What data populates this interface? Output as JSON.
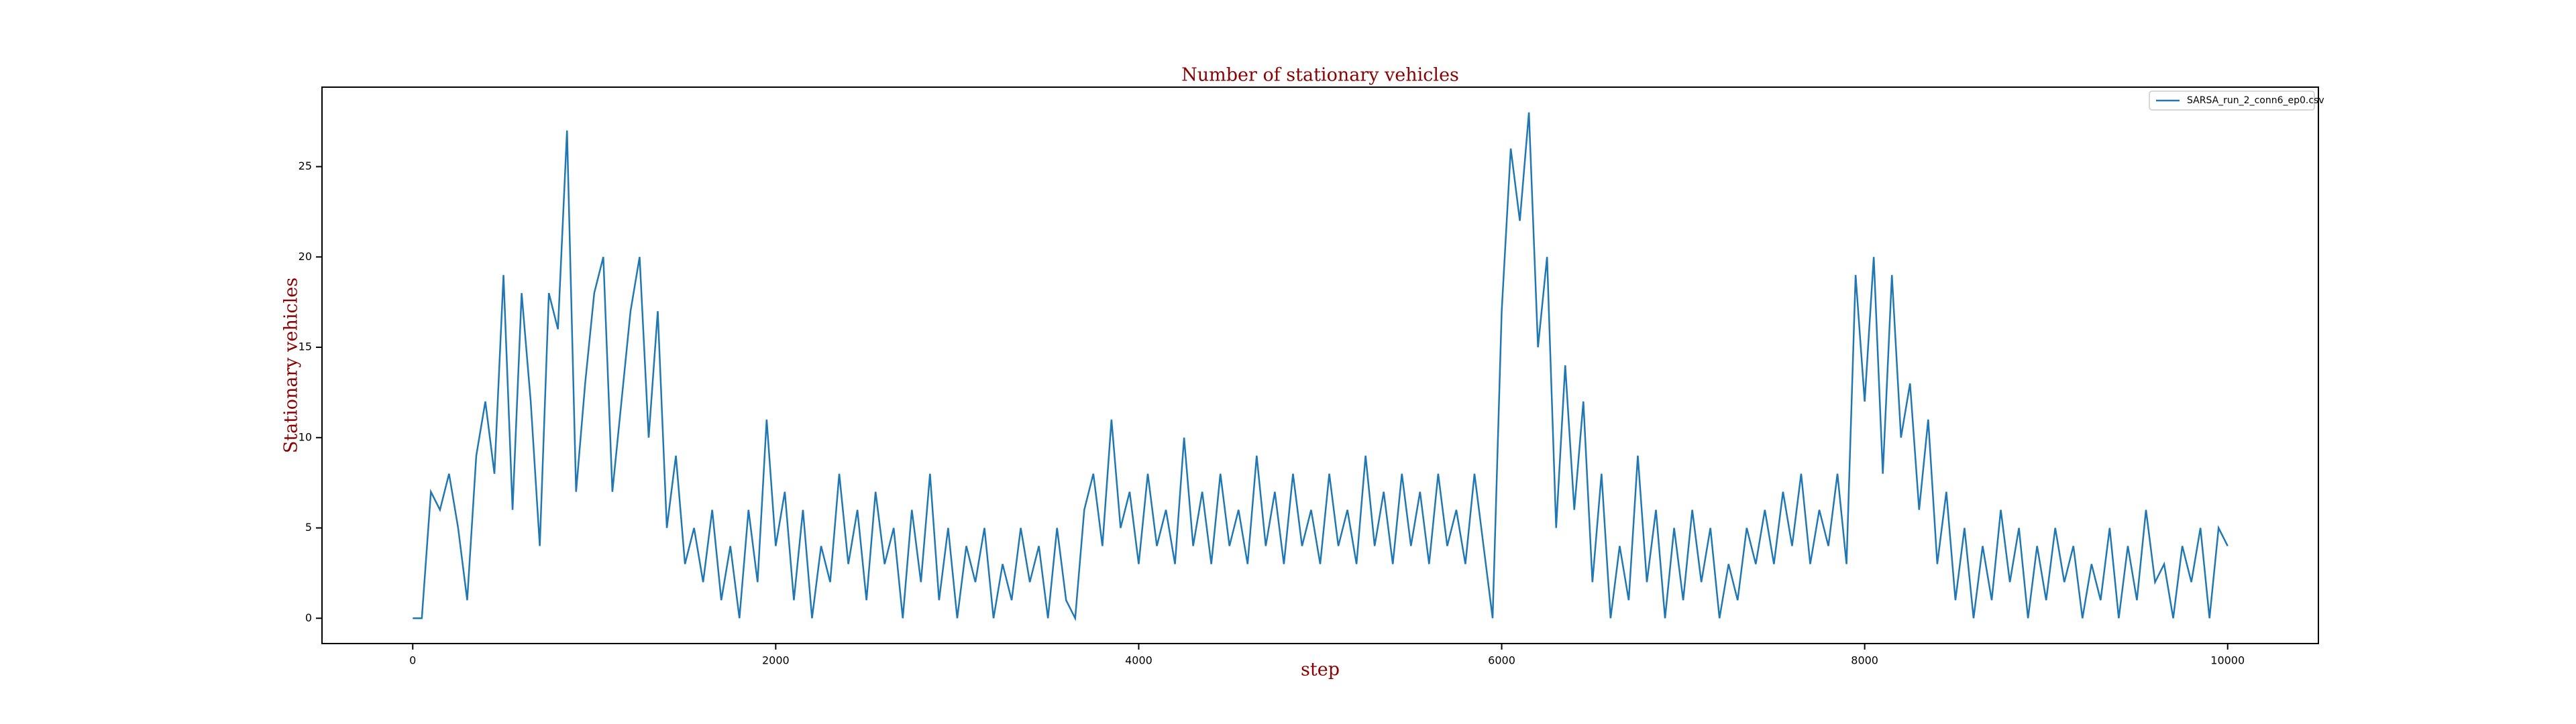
{
  "chart_data": {
    "type": "line",
    "title": "Number of stationary vehicles",
    "x_label": "step",
    "y_label": "Stationary vehicles",
    "xlim": [
      -500,
      10500
    ],
    "ylim": [
      -1.4,
      29.4
    ],
    "xticks": [
      0,
      2000,
      4000,
      6000,
      8000,
      10000
    ],
    "yticks": [
      0,
      5,
      10,
      15,
      20,
      25
    ],
    "legend": "upper right",
    "x": [
      0,
      50,
      100,
      150,
      200,
      250,
      300,
      350,
      400,
      450,
      500,
      550,
      600,
      650,
      700,
      750,
      800,
      850,
      900,
      950,
      1000,
      1050,
      1100,
      1150,
      1200,
      1250,
      1300,
      1350,
      1400,
      1450,
      1500,
      1550,
      1600,
      1650,
      1700,
      1750,
      1800,
      1850,
      1900,
      1950,
      2000,
      2050,
      2100,
      2150,
      2200,
      2250,
      2300,
      2350,
      2400,
      2450,
      2500,
      2550,
      2600,
      2650,
      2700,
      2750,
      2800,
      2850,
      2900,
      2950,
      3000,
      3050,
      3100,
      3150,
      3200,
      3250,
      3300,
      3350,
      3400,
      3450,
      3500,
      3550,
      3600,
      3650,
      3700,
      3750,
      3800,
      3850,
      3900,
      3950,
      4000,
      4050,
      4100,
      4150,
      4200,
      4250,
      4300,
      4350,
      4400,
      4450,
      4500,
      4550,
      4600,
      4650,
      4700,
      4750,
      4800,
      4850,
      4900,
      4950,
      5000,
      5050,
      5100,
      5150,
      5200,
      5250,
      5300,
      5350,
      5400,
      5450,
      5500,
      5550,
      5600,
      5650,
      5700,
      5750,
      5800,
      5850,
      5900,
      5950,
      6000,
      6050,
      6100,
      6150,
      6200,
      6250,
      6300,
      6350,
      6400,
      6450,
      6500,
      6550,
      6600,
      6650,
      6700,
      6750,
      6800,
      6850,
      6900,
      6950,
      7000,
      7050,
      7100,
      7150,
      7200,
      7250,
      7300,
      7350,
      7400,
      7450,
      7500,
      7550,
      7600,
      7650,
      7700,
      7750,
      7800,
      7850,
      7900,
      7950,
      8000,
      8050,
      8100,
      8150,
      8200,
      8250,
      8300,
      8350,
      8400,
      8450,
      8500,
      8550,
      8600,
      8650,
      8700,
      8750,
      8800,
      8850,
      8900,
      8950,
      9000,
      9050,
      9100,
      9150,
      9200,
      9250,
      9300,
      9350,
      9400,
      9450,
      9500,
      9550,
      9600,
      9650,
      9700,
      9750,
      9800,
      9850,
      9900,
      9950,
      10000
    ],
    "series": [
      {
        "name": "SARSA_run_2_conn6_ep0.csv",
        "color": "#1f77b4",
        "values": [
          0,
          0,
          7,
          6,
          8,
          5,
          1,
          9,
          12,
          8,
          19,
          6,
          18,
          12,
          4,
          18,
          16,
          27,
          7,
          13,
          18,
          20,
          7,
          12,
          17,
          20,
          10,
          17,
          5,
          9,
          3,
          5,
          2,
          6,
          1,
          4,
          0,
          6,
          2,
          11,
          4,
          7,
          1,
          6,
          0,
          4,
          2,
          8,
          3,
          6,
          1,
          7,
          3,
          5,
          0,
          6,
          2,
          8,
          1,
          5,
          0,
          4,
          2,
          5,
          0,
          3,
          1,
          5,
          2,
          4,
          0,
          5,
          1,
          0,
          6,
          8,
          4,
          11,
          5,
          7,
          3,
          8,
          4,
          6,
          3,
          10,
          4,
          7,
          3,
          8,
          4,
          6,
          3,
          9,
          4,
          7,
          3,
          8,
          4,
          6,
          3,
          8,
          4,
          6,
          3,
          9,
          4,
          7,
          3,
          8,
          4,
          7,
          3,
          8,
          4,
          6,
          3,
          8,
          4,
          0,
          17,
          26,
          22,
          28,
          15,
          20,
          5,
          14,
          6,
          12,
          2,
          8,
          0,
          4,
          1,
          9,
          2,
          6,
          0,
          5,
          1,
          6,
          2,
          5,
          0,
          3,
          1,
          5,
          3,
          6,
          3,
          7,
          4,
          8,
          3,
          6,
          4,
          8,
          3,
          19,
          12,
          20,
          8,
          19,
          10,
          13,
          6,
          11,
          3,
          7,
          1,
          5,
          0,
          4,
          1,
          6,
          2,
          5,
          0,
          4,
          1,
          5,
          2,
          4,
          0,
          3,
          1,
          5,
          0,
          4,
          1,
          6,
          2,
          3,
          0,
          4,
          2,
          5,
          0,
          5,
          4
        ]
      }
    ]
  }
}
